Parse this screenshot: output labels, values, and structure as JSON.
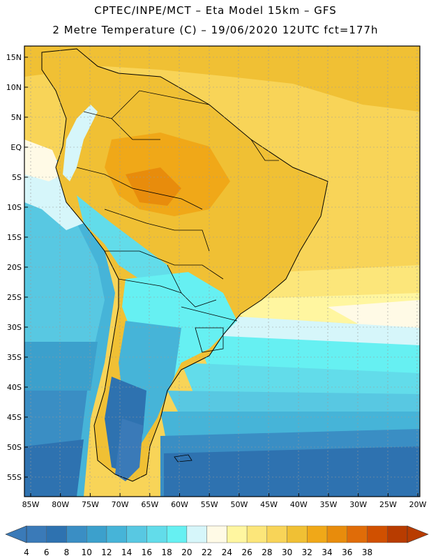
{
  "header": {
    "line1": "CPTEC/INPE/MCT –  Eta Model 15km – GFS",
    "line2": "2 Metre Temperature (C) – 19/06/2020 12UTC fct=177h"
  },
  "map": {
    "lat_range": [
      -58,
      17
    ],
    "lon_range": [
      -86,
      -19.5
    ],
    "lat_ticks": [
      "15N",
      "10N",
      "5N",
      "EQ",
      "5S",
      "10S",
      "15S",
      "20S",
      "25S",
      "30S",
      "35S",
      "40S",
      "45S",
      "50S",
      "55S"
    ],
    "lon_ticks": [
      "85W",
      "80W",
      "75W",
      "70W",
      "65W",
      "60W",
      "55W",
      "50W",
      "45W",
      "40W",
      "35W",
      "30W",
      "25W",
      "20W"
    ]
  },
  "colorbar": {
    "labels": [
      "4",
      "6",
      "8",
      "10",
      "12",
      "14",
      "16",
      "18",
      "20",
      "22",
      "24",
      "26",
      "28",
      "30",
      "32",
      "34",
      "36",
      "38"
    ],
    "colors": [
      "#3a7ab8",
      "#2e72b0",
      "#3a8ec4",
      "#3ca0cc",
      "#46b4d8",
      "#58c8e2",
      "#62dcea",
      "#66f0f2",
      "#d6f6fa",
      "#fffae6",
      "#fff6a0",
      "#fce67a",
      "#f8d458",
      "#f0c034",
      "#f0a818",
      "#e88c0c",
      "#e06c08",
      "#d05000",
      "#b83c00"
    ]
  },
  "icons": {
    "left_arrow": "colorbar-low-arrow-icon",
    "right_arrow": "colorbar-high-arrow-icon"
  }
}
